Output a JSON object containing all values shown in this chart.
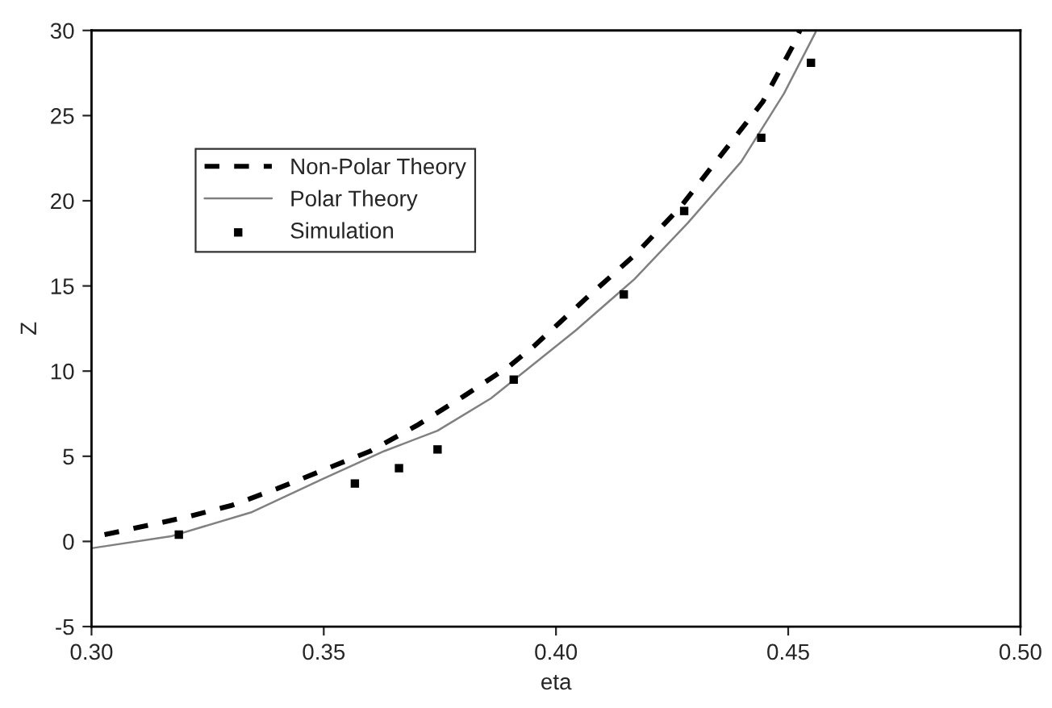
{
  "chart_data": {
    "type": "line",
    "xlabel": "eta",
    "ylabel": "Z",
    "xlim": [
      0.3,
      0.5
    ],
    "xticks": [
      {
        "value": 0.3,
        "label": "0.30"
      },
      {
        "value": 0.35,
        "label": "0.35"
      },
      {
        "value": 0.4,
        "label": "0.40"
      },
      {
        "value": 0.45,
        "label": "0.45"
      },
      {
        "value": 0.5,
        "label": "0.50"
      }
    ],
    "ylim": [
      -5,
      30
    ],
    "yticks": [
      -5,
      0,
      5,
      10,
      15,
      20,
      25,
      30
    ],
    "grid": false,
    "legend": "top left",
    "series": [
      {
        "name": "Non-Polar Theory",
        "color": "#000000",
        "line_style": "dashed",
        "marker": "none",
        "x": [
          0.3028,
          0.32,
          0.33,
          0.34,
          0.35,
          0.36,
          0.37,
          0.38,
          0.39,
          0.3954,
          0.4066,
          0.4169,
          0.4267,
          0.4353,
          0.4445,
          0.4514,
          0.4525
        ],
        "values": [
          0.4,
          1.4,
          2.1,
          3.1,
          4.2,
          5.3,
          6.8,
          8.5,
          10.3,
          11.5,
          14.3,
          16.8,
          19.6,
          22.6,
          25.8,
          29.3,
          30
        ]
      },
      {
        "name": "Polar Theory",
        "color": "#808080",
        "line_style": "solid",
        "marker": "none",
        "x": [
          0.3,
          0.3171,
          0.3343,
          0.35,
          0.363,
          0.3745,
          0.386,
          0.4043,
          0.4169,
          0.4284,
          0.4399,
          0.4491,
          0.4559
        ],
        "values": [
          -0.4,
          0.3,
          1.7,
          3.7,
          5.3,
          6.5,
          8.4,
          12.4,
          15.4,
          18.7,
          22.3,
          26.3,
          29.9
        ]
      },
      {
        "name": "Simulation",
        "type": "scatter",
        "color": "#000000",
        "marker": "square",
        "x": [
          0.3188,
          0.3567,
          0.3662,
          0.3745,
          0.3909,
          0.4146,
          0.4276,
          0.4442,
          0.4549
        ],
        "values": [
          0.4,
          3.4,
          4.3,
          5.4,
          9.5,
          14.5,
          19.4,
          23.7,
          28.1
        ]
      }
    ]
  }
}
